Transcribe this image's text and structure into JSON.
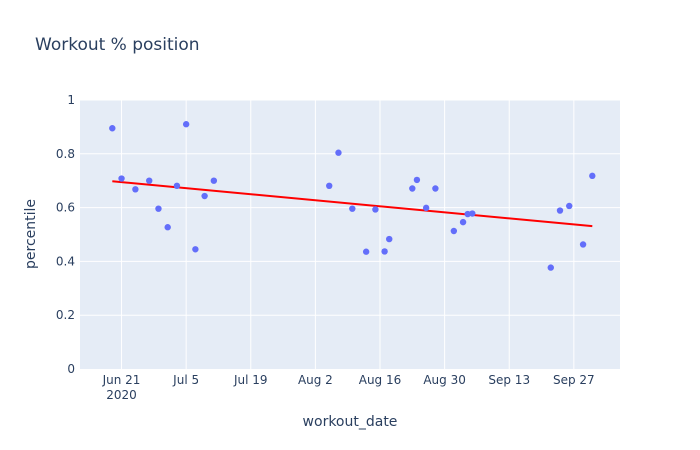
{
  "chart_data": {
    "type": "scatter",
    "title": "Workout % position",
    "xlabel": "workout_date",
    "ylabel": "percentile",
    "x_axis": {
      "type": "date",
      "range": [
        "2020-06-12",
        "2020-10-07"
      ],
      "ticks": [
        {
          "date": "2020-06-21",
          "label": "Jun 21",
          "sublabel": "2020"
        },
        {
          "date": "2020-07-05",
          "label": "Jul 5"
        },
        {
          "date": "2020-07-19",
          "label": "Jul 19"
        },
        {
          "date": "2020-08-02",
          "label": "Aug 2"
        },
        {
          "date": "2020-08-16",
          "label": "Aug 16"
        },
        {
          "date": "2020-08-30",
          "label": "Aug 30"
        },
        {
          "date": "2020-09-13",
          "label": "Sep 13"
        },
        {
          "date": "2020-09-27",
          "label": "Sep 27"
        }
      ]
    },
    "y_axis": {
      "range": [
        0,
        1
      ],
      "ticks": [
        0,
        0.2,
        0.4,
        0.6,
        0.8,
        1
      ],
      "tick_labels": [
        "0",
        "0.2",
        "0.4",
        "0.6",
        "0.8",
        "1"
      ]
    },
    "grid": true,
    "series": [
      {
        "marker_color": "#636efa",
        "points": [
          {
            "x": "2020-06-19",
            "y": 0.895
          },
          {
            "x": "2020-06-21",
            "y": 0.708
          },
          {
            "x": "2020-06-24",
            "y": 0.668
          },
          {
            "x": "2020-06-27",
            "y": 0.7
          },
          {
            "x": "2020-06-29",
            "y": 0.596
          },
          {
            "x": "2020-07-01",
            "y": 0.527
          },
          {
            "x": "2020-07-03",
            "y": 0.681
          },
          {
            "x": "2020-07-05",
            "y": 0.91
          },
          {
            "x": "2020-07-07",
            "y": 0.445
          },
          {
            "x": "2020-07-09",
            "y": 0.643
          },
          {
            "x": "2020-07-11",
            "y": 0.7
          },
          {
            "x": "2020-08-05",
            "y": 0.681
          },
          {
            "x": "2020-08-07",
            "y": 0.804
          },
          {
            "x": "2020-08-10",
            "y": 0.596
          },
          {
            "x": "2020-08-13",
            "y": 0.436
          },
          {
            "x": "2020-08-15",
            "y": 0.593
          },
          {
            "x": "2020-08-17",
            "y": 0.437
          },
          {
            "x": "2020-08-18",
            "y": 0.483
          },
          {
            "x": "2020-08-23",
            "y": 0.671
          },
          {
            "x": "2020-08-24",
            "y": 0.703
          },
          {
            "x": "2020-08-26",
            "y": 0.599
          },
          {
            "x": "2020-08-28",
            "y": 0.671
          },
          {
            "x": "2020-09-01",
            "y": 0.513
          },
          {
            "x": "2020-09-03",
            "y": 0.546
          },
          {
            "x": "2020-09-04",
            "y": 0.576
          },
          {
            "x": "2020-09-05",
            "y": 0.578
          },
          {
            "x": "2020-09-22",
            "y": 0.377
          },
          {
            "x": "2020-09-24",
            "y": 0.589
          },
          {
            "x": "2020-09-26",
            "y": 0.606
          },
          {
            "x": "2020-09-29",
            "y": 0.463
          },
          {
            "x": "2020-10-01",
            "y": 0.718
          }
        ]
      }
    ],
    "trendline": {
      "color": "#ff0000",
      "start": {
        "x": "2020-06-19",
        "y": 0.698
      },
      "end": {
        "x": "2020-10-01",
        "y": 0.531
      }
    }
  },
  "colors": {
    "plot_bg": "#e5ecf6",
    "grid": "#ffffff",
    "text": "#2a3f5f",
    "marker": "#636efa",
    "trendline": "#ff0000"
  }
}
